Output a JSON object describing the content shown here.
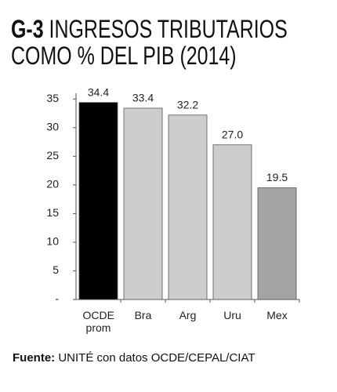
{
  "chart_data": {
    "type": "bar",
    "title_label": "G-3",
    "title": "INGRESOS TRIBUTARIOS COMO % DEL PIB (2014)",
    "categories": [
      "OCDE prom",
      "Bra",
      "Arg",
      "Uru",
      "Mex"
    ],
    "values": [
      34.4,
      33.4,
      32.2,
      27.0,
      19.5
    ],
    "value_labels": [
      "34.4",
      "33.4",
      "32.2",
      "27.0",
      "19.5"
    ],
    "colors": [
      "#000000",
      "#cdcdcd",
      "#cdcdcd",
      "#cdcdcd",
      "#a3a3a3"
    ],
    "ylim": [
      0,
      36
    ],
    "yticks": [
      {
        "value": 0,
        "label": "-"
      },
      5,
      10,
      15,
      20,
      25,
      30,
      35
    ],
    "grid": false,
    "source_label": "Fuente:",
    "source": "UNITÉ con datos OCDE/CEPAL/CIAT"
  }
}
